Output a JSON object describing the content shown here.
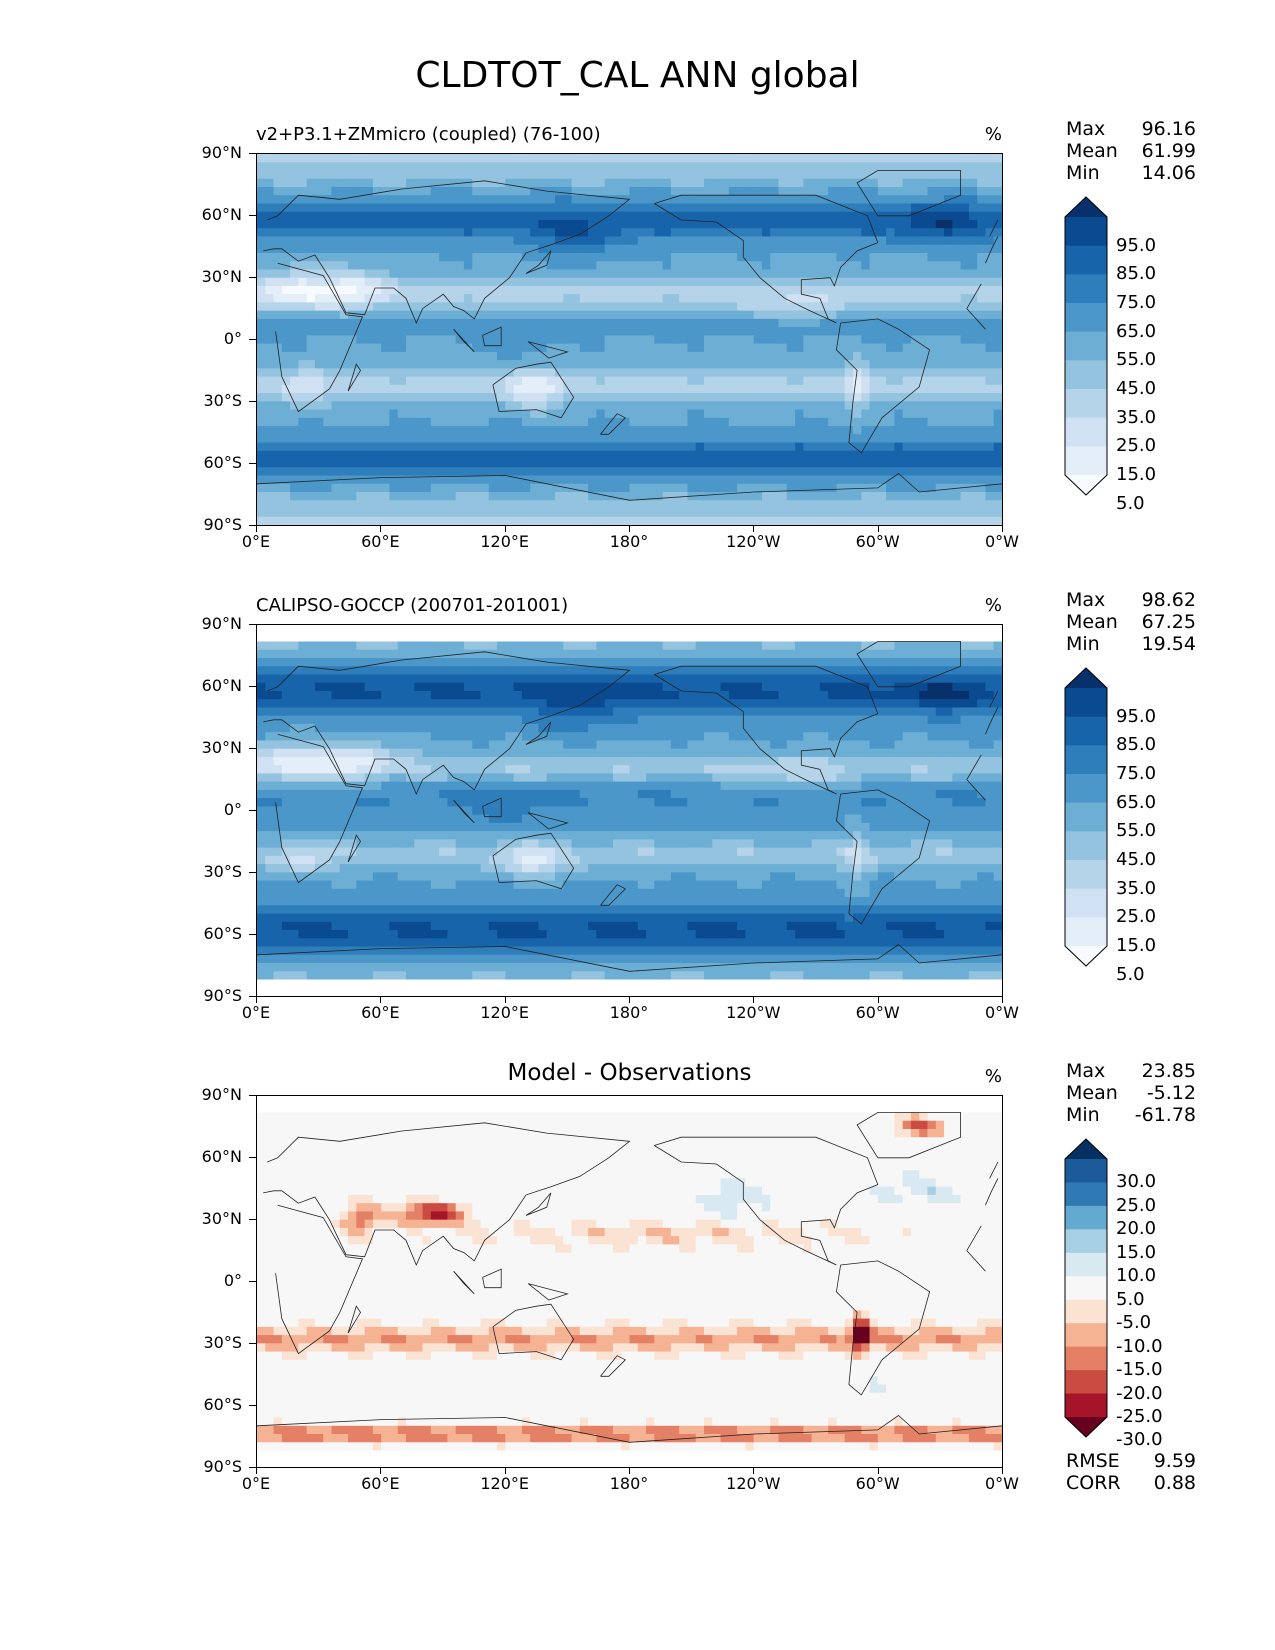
{
  "title": "CLDTOT_CAL ANN global",
  "colors": {
    "seq": [
      "#f7fbff",
      "#e3eef9",
      "#cfe1f2",
      "#b5d4e9",
      "#93c3df",
      "#6daed5",
      "#4b97c9",
      "#2f7ebc",
      "#1864aa",
      "#0a4a90",
      "#08306b"
    ],
    "div": [
      "#67001f",
      "#a51429",
      "#cb4b42",
      "#e48066",
      "#f6b394",
      "#fbe3d4",
      "#f7f7f7",
      "#d9e9f1",
      "#a7d0e4",
      "#64a9cf",
      "#2f79b5",
      "#1b5999",
      "#053061"
    ]
  },
  "panels": [
    {
      "title": "v2+P3.1+ZMmicro (coupled) (76-100)",
      "units": "%",
      "stats": {
        "max_label": "Max",
        "max": "96.16",
        "mean_label": "Mean",
        "mean": "61.99",
        "min_label": "Min",
        "min": "14.06"
      },
      "colorbar": {
        "labels": [
          "95.0",
          "85.0",
          "75.0",
          "65.0",
          "55.0",
          "45.0",
          "35.0",
          "25.0",
          "15.0",
          "5.0"
        ]
      }
    },
    {
      "title": "CALIPSO-GOCCP (200701-201001)",
      "units": "%",
      "stats": {
        "max_label": "Max",
        "max": "98.62",
        "mean_label": "Mean",
        "mean": "67.25",
        "min_label": "Min",
        "min": "19.54"
      },
      "colorbar": {
        "labels": [
          "95.0",
          "85.0",
          "75.0",
          "65.0",
          "55.0",
          "45.0",
          "35.0",
          "25.0",
          "15.0",
          "5.0"
        ]
      }
    },
    {
      "title": "Model - Observations",
      "units": "%",
      "stats": {
        "max_label": "Max",
        "max": "23.85",
        "mean_label": "Mean",
        "mean": "-5.12",
        "min_label": "Min",
        "min": "-61.78"
      },
      "colorbar": {
        "labels": [
          "30.0",
          "25.0",
          "20.0",
          "15.0",
          "10.0",
          "5.0",
          "-5.0",
          "-10.0",
          "-15.0",
          "-20.0",
          "-25.0",
          "-30.0"
        ]
      },
      "metrics": {
        "rmse_label": "RMSE",
        "rmse": "9.59",
        "corr_label": "CORR",
        "corr": "0.88"
      }
    }
  ],
  "axes": {
    "lat_ticks": [
      "90°N",
      "60°N",
      "30°N",
      "0°",
      "30°S",
      "60°S",
      "90°S"
    ],
    "lon_ticks": [
      "0°E",
      "60°E",
      "120°E",
      "180°",
      "120°W",
      "60°W",
      "0°W"
    ]
  }
}
